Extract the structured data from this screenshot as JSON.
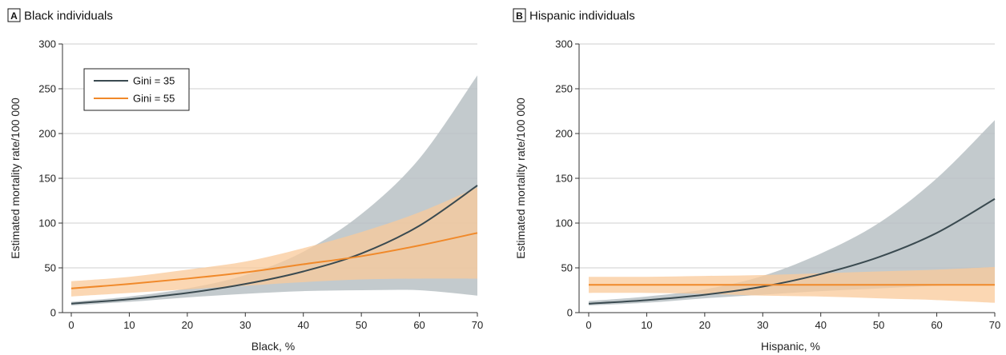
{
  "colors": {
    "gini35": "#3a4a50",
    "gini35_band": "#b9c1c4",
    "gini55": "#f0892a",
    "gini55_band": "#f9c99a",
    "grid": "#cfcfcf",
    "axis": "#333333"
  },
  "legend": {
    "items": [
      "Gini = 35",
      "Gini = 55"
    ],
    "placement": "top-left"
  },
  "chart_data": [
    {
      "type": "line",
      "panel_letter": "A",
      "title": "Black individuals",
      "xlabel": "Black, %",
      "ylabel": "Estimated mortality rate/100 000",
      "xlim": [
        0,
        70
      ],
      "ylim": [
        0,
        300
      ],
      "xticks": [
        0,
        10,
        20,
        30,
        40,
        50,
        60,
        70
      ],
      "yticks": [
        0,
        50,
        100,
        150,
        200,
        250,
        300
      ],
      "grid": "horizontal",
      "show_legend": true,
      "x": [
        0,
        10,
        20,
        30,
        40,
        50,
        60,
        70
      ],
      "series": [
        {
          "name": "Gini = 35",
          "values": [
            10,
            15,
            22,
            32,
            46,
            66,
            97,
            142
          ],
          "lower": [
            8,
            12,
            17,
            21,
            24,
            25,
            25,
            19
          ],
          "upper": [
            12,
            18,
            27,
            42,
            68,
            110,
            172,
            265
          ]
        },
        {
          "name": "Gini = 55",
          "values": [
            27,
            32,
            38,
            45,
            54,
            63,
            75,
            89
          ],
          "lower": [
            18,
            22,
            26,
            30,
            34,
            37,
            38,
            38
          ],
          "upper": [
            35,
            40,
            48,
            57,
            72,
            90,
            112,
            140
          ]
        }
      ]
    },
    {
      "type": "line",
      "panel_letter": "B",
      "title": "Hispanic individuals",
      "xlabel": "Hispanic, %",
      "ylabel": "Estimated mortality rate/100 000",
      "xlim": [
        0,
        70
      ],
      "ylim": [
        0,
        300
      ],
      "xticks": [
        0,
        10,
        20,
        30,
        40,
        50,
        60,
        70
      ],
      "yticks": [
        0,
        50,
        100,
        150,
        200,
        250,
        300
      ],
      "grid": "horizontal",
      "show_legend": false,
      "x": [
        0,
        10,
        20,
        30,
        40,
        50,
        60,
        70
      ],
      "series": [
        {
          "name": "Gini = 35",
          "values": [
            10,
            14,
            20,
            29,
            43,
            62,
            89,
            127
          ],
          "lower": [
            8,
            11,
            16,
            20,
            24,
            27,
            30,
            32
          ],
          "upper": [
            13,
            18,
            26,
            41,
            66,
            100,
            150,
            215
          ]
        },
        {
          "name": "Gini = 55",
          "values": [
            31,
            31,
            31,
            31,
            31,
            31,
            31,
            31
          ],
          "lower": [
            22,
            22,
            21,
            19,
            18,
            16,
            14,
            11
          ],
          "upper": [
            40,
            40,
            41,
            42,
            44,
            46,
            48,
            51
          ]
        }
      ]
    }
  ]
}
